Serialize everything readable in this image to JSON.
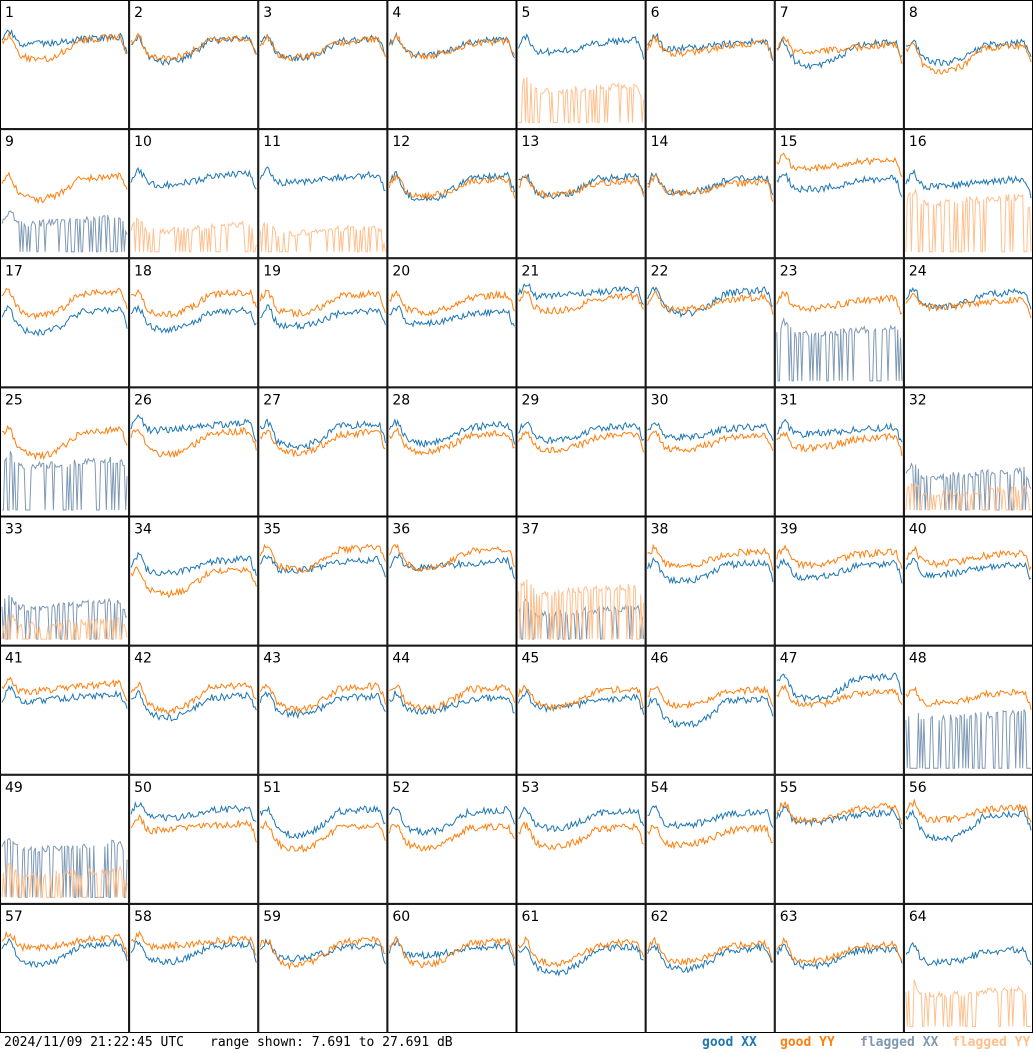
{
  "header": {
    "timestamp": "2024/11/09 21:22:45 UTC",
    "range_text": "range shown: 7.691 to 27.691 dB"
  },
  "legend": {
    "good_xx": "good XX",
    "good_yy": "good YY",
    "flagged_xx": "flagged XX",
    "flagged_yy": "flagged YY"
  },
  "colors": {
    "good_xx": "#1f77b4",
    "good_yy": "#ff7f0e",
    "flagged_xx": "#7f99b4",
    "flagged_yy": "#ffc08e"
  },
  "chart_data": {
    "type": "line",
    "layout": "8x8 grid of per-antenna spectra",
    "y_range_db": [
      7.691,
      27.691
    ],
    "xlabel": "",
    "ylabel": "",
    "grid": false,
    "legend_position": "bottom-right",
    "panels": [
      {
        "label": "1",
        "xx": "good",
        "yy": "good"
      },
      {
        "label": "2",
        "xx": "good",
        "yy": "good"
      },
      {
        "label": "3",
        "xx": "good",
        "yy": "good"
      },
      {
        "label": "4",
        "xx": "good",
        "yy": "good"
      },
      {
        "label": "5",
        "xx": "good",
        "yy": "flagged"
      },
      {
        "label": "6",
        "xx": "good",
        "yy": "good"
      },
      {
        "label": "7",
        "xx": "good",
        "yy": "good"
      },
      {
        "label": "8",
        "xx": "good",
        "yy": "good"
      },
      {
        "label": "9",
        "xx": "flagged",
        "yy": "good"
      },
      {
        "label": "10",
        "xx": "good",
        "yy": "flagged"
      },
      {
        "label": "11",
        "xx": "good",
        "yy": "flagged"
      },
      {
        "label": "12",
        "xx": "good",
        "yy": "good"
      },
      {
        "label": "13",
        "xx": "good",
        "yy": "good"
      },
      {
        "label": "14",
        "xx": "good",
        "yy": "good"
      },
      {
        "label": "15",
        "xx": "good",
        "yy": "good"
      },
      {
        "label": "16",
        "xx": "good",
        "yy": "flagged"
      },
      {
        "label": "17",
        "xx": "good",
        "yy": "good"
      },
      {
        "label": "18",
        "xx": "good",
        "yy": "good"
      },
      {
        "label": "19",
        "xx": "good",
        "yy": "good"
      },
      {
        "label": "20",
        "xx": "good",
        "yy": "good"
      },
      {
        "label": "21",
        "xx": "good",
        "yy": "good"
      },
      {
        "label": "22",
        "xx": "good",
        "yy": "good"
      },
      {
        "label": "23",
        "xx": "flagged",
        "yy": "good"
      },
      {
        "label": "24",
        "xx": "good",
        "yy": "good"
      },
      {
        "label": "25",
        "xx": "flagged",
        "yy": "good"
      },
      {
        "label": "26",
        "xx": "good",
        "yy": "good"
      },
      {
        "label": "27",
        "xx": "good",
        "yy": "good"
      },
      {
        "label": "28",
        "xx": "good",
        "yy": "good"
      },
      {
        "label": "29",
        "xx": "good",
        "yy": "good"
      },
      {
        "label": "30",
        "xx": "good",
        "yy": "good"
      },
      {
        "label": "31",
        "xx": "good",
        "yy": "good"
      },
      {
        "label": "32",
        "xx": "flagged",
        "yy": "flagged"
      },
      {
        "label": "33",
        "xx": "flagged",
        "yy": "flagged"
      },
      {
        "label": "34",
        "xx": "good",
        "yy": "good"
      },
      {
        "label": "35",
        "xx": "good",
        "yy": "good"
      },
      {
        "label": "36",
        "xx": "good",
        "yy": "good"
      },
      {
        "label": "37",
        "xx": "flagged",
        "yy": "flagged"
      },
      {
        "label": "38",
        "xx": "good",
        "yy": "good"
      },
      {
        "label": "39",
        "xx": "good",
        "yy": "good"
      },
      {
        "label": "40",
        "xx": "good",
        "yy": "good"
      },
      {
        "label": "41",
        "xx": "good",
        "yy": "good"
      },
      {
        "label": "42",
        "xx": "good",
        "yy": "good"
      },
      {
        "label": "43",
        "xx": "good",
        "yy": "good"
      },
      {
        "label": "44",
        "xx": "good",
        "yy": "good"
      },
      {
        "label": "45",
        "xx": "good",
        "yy": "good"
      },
      {
        "label": "46",
        "xx": "good",
        "yy": "good"
      },
      {
        "label": "47",
        "xx": "good",
        "yy": "good"
      },
      {
        "label": "48",
        "xx": "flagged",
        "yy": "good"
      },
      {
        "label": "49",
        "xx": "flagged",
        "yy": "flagged"
      },
      {
        "label": "50",
        "xx": "good",
        "yy": "good"
      },
      {
        "label": "51",
        "xx": "good",
        "yy": "good"
      },
      {
        "label": "52",
        "xx": "good",
        "yy": "good"
      },
      {
        "label": "53",
        "xx": "good",
        "yy": "good"
      },
      {
        "label": "54",
        "xx": "good",
        "yy": "good"
      },
      {
        "label": "55",
        "xx": "good",
        "yy": "good"
      },
      {
        "label": "56",
        "xx": "good",
        "yy": "good"
      },
      {
        "label": "57",
        "xx": "good",
        "yy": "good"
      },
      {
        "label": "58",
        "xx": "good",
        "yy": "good"
      },
      {
        "label": "59",
        "xx": "good",
        "yy": "good"
      },
      {
        "label": "60",
        "xx": "good",
        "yy": "good"
      },
      {
        "label": "61",
        "xx": "good",
        "yy": "good"
      },
      {
        "label": "62",
        "xx": "good",
        "yy": "good"
      },
      {
        "label": "63",
        "xx": "good",
        "yy": "good"
      },
      {
        "label": "64",
        "xx": "good",
        "yy": "flagged"
      }
    ]
  }
}
